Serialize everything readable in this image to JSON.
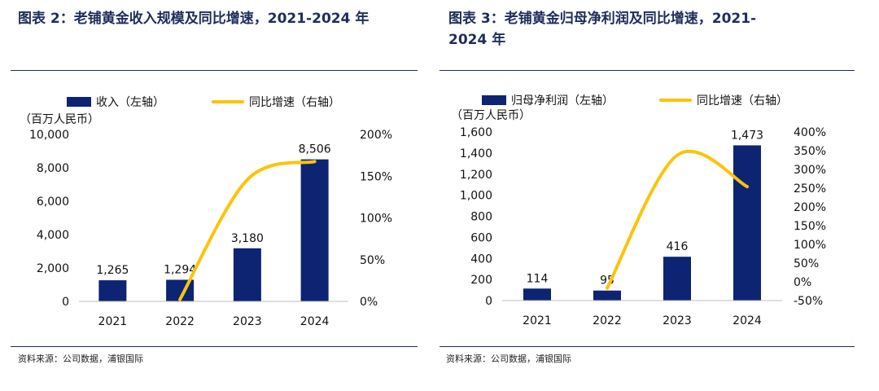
{
  "left": {
    "title": "图表 2：老铺黄金收入规模及同比增速，2021-2024 年",
    "source": "资料来源：公司数据，浦银国际",
    "chart_data": {
      "type": "bar",
      "categories": [
        "2021",
        "2022",
        "2023",
        "2024"
      ],
      "series": [
        {
          "name": "收入（左轴）",
          "type": "bar",
          "axis": "left",
          "values": [
            1265,
            1294,
            3180,
            8506
          ],
          "labels": [
            "1,265",
            "1,294",
            "3,180",
            "8,506"
          ]
        },
        {
          "name": "同比增速（右轴）",
          "type": "line",
          "axis": "right",
          "values": [
            null,
            2.3,
            145.8,
            167.5
          ]
        }
      ],
      "y_left_label": "（百万人民币）",
      "y_left_range": [
        0,
        10000
      ],
      "y_left_ticks": [
        "0",
        "2,000",
        "4,000",
        "6,000",
        "8,000",
        "10,000"
      ],
      "y_right_range": [
        0,
        200
      ],
      "y_right_ticks": [
        "0%",
        "50%",
        "100%",
        "150%",
        "200%"
      ],
      "legend_position": "top",
      "bar_color": "#0d2473",
      "line_color": "#fcc30a"
    }
  },
  "right": {
    "title": "图表 3：老铺黄金归母净利润及同比增速，2021-\n2024 年",
    "source": "资料来源：公司数据，浦银国际",
    "chart_data": {
      "type": "bar",
      "categories": [
        "2021",
        "2022",
        "2023",
        "2024"
      ],
      "series": [
        {
          "name": "归母净利润（左轴）",
          "type": "bar",
          "axis": "left",
          "values": [
            114,
            95,
            416,
            1473
          ],
          "labels": [
            "114",
            "95",
            "416",
            "1,473"
          ]
        },
        {
          "name": "同比增速（右轴）",
          "type": "line",
          "axis": "right",
          "values": [
            null,
            -16.7,
            337.9,
            254.1
          ]
        }
      ],
      "y_left_label": "（百万人民币）",
      "y_left_range": [
        0,
        1600
      ],
      "y_left_ticks": [
        "0",
        "200",
        "400",
        "600",
        "800",
        "1,000",
        "1,200",
        "1,400",
        "1,600"
      ],
      "y_right_range": [
        -50,
        400
      ],
      "y_right_ticks": [
        "-50%",
        "0%",
        "50%",
        "100%",
        "150%",
        "200%",
        "250%",
        "300%",
        "350%",
        "400%"
      ],
      "legend_position": "top",
      "bar_color": "#0d2473",
      "line_color": "#fcc30a"
    }
  }
}
